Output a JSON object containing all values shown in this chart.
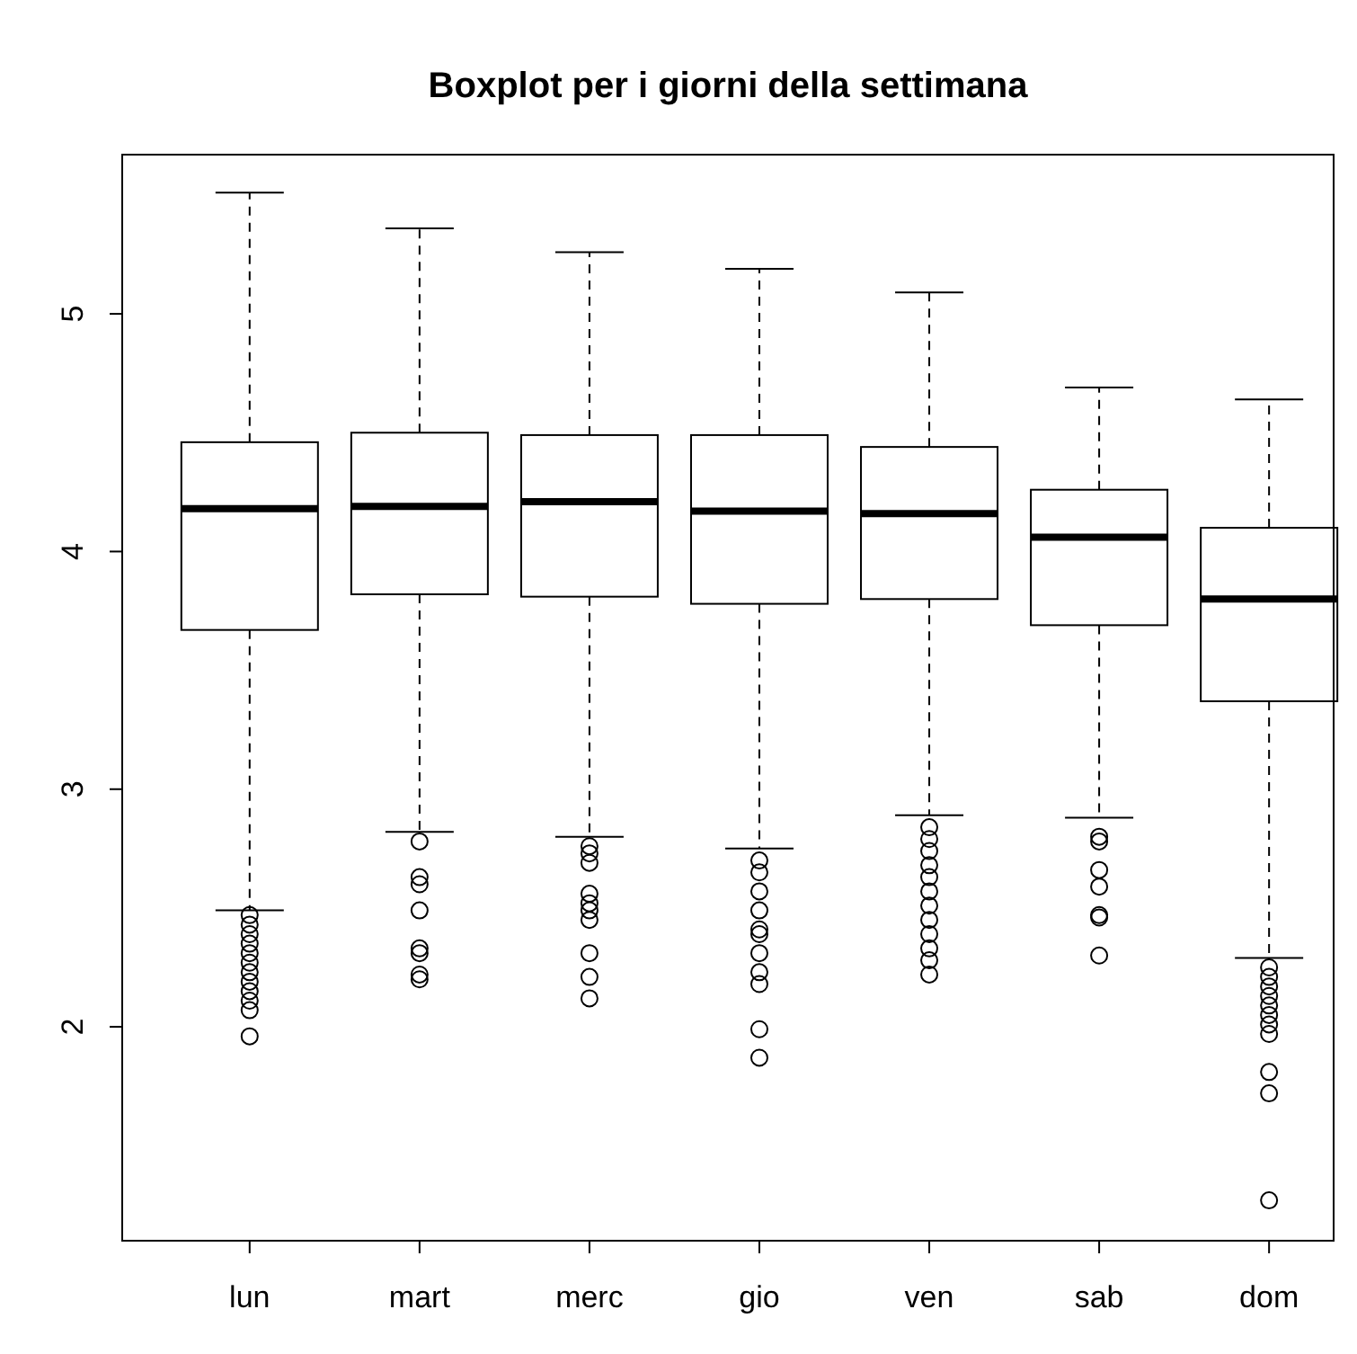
{
  "chart_data": {
    "type": "box",
    "title": "Boxplot per i giorni della settimana",
    "categories": [
      "lun",
      "mart",
      "merc",
      "gio",
      "ven",
      "sab",
      "dom"
    ],
    "ylim": [
      1.1,
      5.67
    ],
    "yticks": [
      2,
      3,
      4,
      5
    ],
    "grid": false,
    "boxes": [
      {
        "low": 2.49,
        "q1": 3.67,
        "median": 4.18,
        "q3": 4.46,
        "high": 5.51,
        "outliers": [
          2.47,
          2.43,
          2.39,
          2.35,
          2.31,
          2.27,
          2.23,
          2.19,
          2.15,
          2.11,
          2.07,
          1.96
        ]
      },
      {
        "low": 2.82,
        "q1": 3.82,
        "median": 4.19,
        "q3": 4.5,
        "high": 5.36,
        "outliers": [
          2.78,
          2.63,
          2.6,
          2.49,
          2.33,
          2.31,
          2.22,
          2.2
        ]
      },
      {
        "low": 2.8,
        "q1": 3.81,
        "median": 4.21,
        "q3": 4.49,
        "high": 5.26,
        "outliers": [
          2.76,
          2.73,
          2.69,
          2.56,
          2.52,
          2.49,
          2.45,
          2.31,
          2.21,
          2.12
        ]
      },
      {
        "low": 2.75,
        "q1": 3.78,
        "median": 4.17,
        "q3": 4.49,
        "high": 5.19,
        "outliers": [
          2.7,
          2.65,
          2.57,
          2.49,
          2.41,
          2.39,
          2.31,
          2.23,
          2.18,
          1.99,
          1.87
        ]
      },
      {
        "low": 2.89,
        "q1": 3.8,
        "median": 4.16,
        "q3": 4.44,
        "high": 5.09,
        "outliers": [
          2.84,
          2.79,
          2.74,
          2.68,
          2.63,
          2.57,
          2.51,
          2.45,
          2.39,
          2.33,
          2.28,
          2.22
        ]
      },
      {
        "low": 2.88,
        "q1": 3.69,
        "median": 4.06,
        "q3": 4.26,
        "high": 4.69,
        "outliers": [
          2.8,
          2.78,
          2.66,
          2.59,
          2.47,
          2.46,
          2.3
        ]
      },
      {
        "low": 2.29,
        "q1": 3.37,
        "median": 3.8,
        "q3": 4.1,
        "high": 4.64,
        "outliers": [
          2.25,
          2.21,
          2.17,
          2.13,
          2.09,
          2.05,
          2.01,
          1.97,
          1.81,
          1.72,
          1.27
        ]
      }
    ]
  }
}
